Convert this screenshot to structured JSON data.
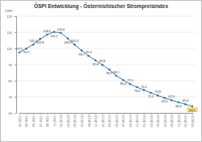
{
  "chart_data": {
    "type": "line",
    "title": "ÖSPI Entwicklung - Österreichischer Strompreisindex",
    "y_label": "ÖSPI",
    "categories": [
      "01.2011",
      "03.2011",
      "05.2011",
      "07.2011",
      "09.2011",
      "11.2011",
      "01.2012",
      "03.2012",
      "05.2012",
      "07.2012",
      "09.2012",
      "11.2012",
      "01.2013",
      "03.2013",
      "05.2013",
      "07.2013",
      "09.2013",
      "11.2013",
      "01.2014",
      "03.2014",
      "05.2014",
      "07.2014",
      "09.2014",
      "11.2014",
      "01.2015",
      "03.2015"
    ],
    "values": [
      97.5,
      99.9,
      102.4,
      105.8,
      108.5,
      110.2,
      109.6,
      106.1,
      102.3,
      98.7,
      95.4,
      92.6,
      89.8,
      86.9,
      83.1,
      80.4,
      77.9,
      76.0,
      74.2,
      72.5,
      70.8,
      69.3,
      67.9,
      66.6,
      65.4,
      64.1
    ],
    "value_labels": [
      "97,5",
      "99,9",
      "102,4",
      "105,8",
      "108,5",
      "110,2",
      "109,6",
      "106,1",
      "102,3",
      "98,7",
      "95,4",
      "92,6",
      "89,8",
      "86,9",
      "83,1",
      "80,4",
      "77,9",
      "76,0",
      "74,2",
      "72,5",
      "70,8",
      "69,3",
      "67,9",
      "66,6",
      "65,4",
      "64,1"
    ],
    "color": "#2e75b6",
    "marker": "circle",
    "data_labels": true,
    "grid": true,
    "ylim": [
      60,
      120
    ],
    "yticks": [
      60,
      70,
      80,
      90,
      100,
      110,
      120
    ]
  }
}
